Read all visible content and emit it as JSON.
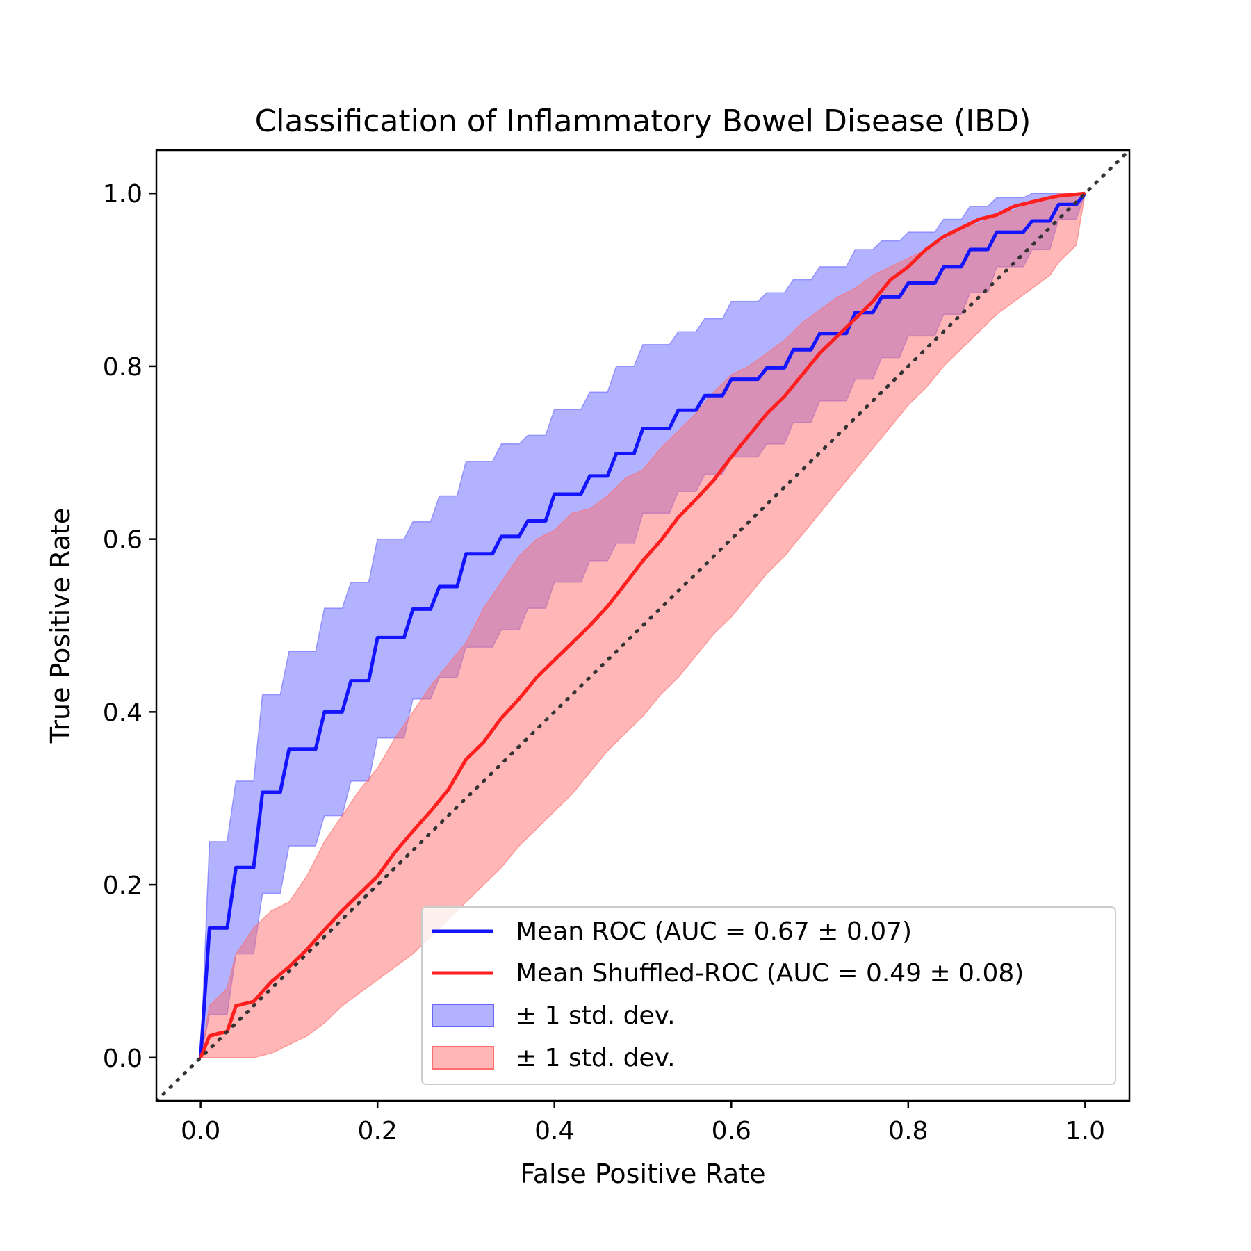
{
  "chart_data": {
    "type": "line",
    "title": "Classification of Inflammatory Bowel Disease (IBD)",
    "xlabel": "False Positive Rate",
    "ylabel": "True Positive Rate",
    "xlim": [
      -0.05,
      1.05
    ],
    "ylim": [
      -0.05,
      1.05
    ],
    "xticks": [
      "0.0",
      "0.2",
      "0.4",
      "0.6",
      "0.8",
      "1.0"
    ],
    "yticks": [
      "0.0",
      "0.2",
      "0.4",
      "0.6",
      "0.8",
      "1.0"
    ],
    "grid": false,
    "legend_position": "lower-right",
    "legend": [
      "Mean ROC (AUC = 0.67 ± 0.07)",
      "Mean Shuffled-ROC (AUC = 0.49 ± 0.08)",
      "± 1 std. dev.",
      "± 1 std. dev."
    ],
    "colors": {
      "roc": "#1414ff",
      "shuffled": "#ff1f1f",
      "roc_band": "#6666ff",
      "shuffled_band": "#ff6e6e",
      "diagonal": "#333333"
    },
    "series": [
      {
        "name": "Mean ROC (AUC = 0.67 ± 0.07)",
        "x": [
          0.0,
          0.01,
          0.01,
          0.03,
          0.04,
          0.06,
          0.07,
          0.09,
          0.1,
          0.13,
          0.14,
          0.16,
          0.17,
          0.19,
          0.2,
          0.23,
          0.24,
          0.26,
          0.27,
          0.29,
          0.3,
          0.33,
          0.34,
          0.36,
          0.37,
          0.39,
          0.4,
          0.43,
          0.44,
          0.46,
          0.47,
          0.49,
          0.5,
          0.53,
          0.54,
          0.56,
          0.57,
          0.59,
          0.6,
          0.63,
          0.64,
          0.66,
          0.67,
          0.69,
          0.7,
          0.73,
          0.74,
          0.76,
          0.77,
          0.79,
          0.8,
          0.83,
          0.84,
          0.86,
          0.87,
          0.89,
          0.9,
          0.93,
          0.94,
          0.96,
          0.97,
          0.99,
          1.0
        ],
        "y": [
          0.0,
          0.15,
          0.15,
          0.15,
          0.22,
          0.22,
          0.307,
          0.307,
          0.357,
          0.357,
          0.4,
          0.4,
          0.436,
          0.436,
          0.486,
          0.486,
          0.519,
          0.519,
          0.545,
          0.545,
          0.583,
          0.583,
          0.603,
          0.603,
          0.621,
          0.621,
          0.652,
          0.652,
          0.673,
          0.673,
          0.699,
          0.699,
          0.728,
          0.728,
          0.749,
          0.749,
          0.766,
          0.766,
          0.785,
          0.785,
          0.798,
          0.798,
          0.819,
          0.819,
          0.838,
          0.838,
          0.862,
          0.862,
          0.88,
          0.88,
          0.896,
          0.896,
          0.915,
          0.915,
          0.935,
          0.935,
          0.955,
          0.955,
          0.968,
          0.968,
          0.987,
          0.987,
          1.0
        ]
      },
      {
        "name": "Mean Shuffled-ROC (AUC = 0.49 ± 0.08)",
        "x": [
          0.0,
          0.01,
          0.02,
          0.03,
          0.04,
          0.06,
          0.08,
          0.1,
          0.12,
          0.14,
          0.16,
          0.18,
          0.2,
          0.22,
          0.24,
          0.26,
          0.28,
          0.3,
          0.32,
          0.34,
          0.36,
          0.38,
          0.4,
          0.42,
          0.44,
          0.46,
          0.48,
          0.5,
          0.52,
          0.54,
          0.56,
          0.58,
          0.6,
          0.62,
          0.64,
          0.66,
          0.68,
          0.7,
          0.72,
          0.74,
          0.76,
          0.78,
          0.8,
          0.82,
          0.84,
          0.86,
          0.88,
          0.9,
          0.92,
          0.94,
          0.96,
          0.97,
          0.98,
          0.99,
          1.0
        ],
        "y": [
          0.0,
          0.025,
          0.028,
          0.03,
          0.06,
          0.065,
          0.088,
          0.105,
          0.125,
          0.148,
          0.17,
          0.19,
          0.21,
          0.238,
          0.262,
          0.285,
          0.31,
          0.345,
          0.365,
          0.393,
          0.415,
          0.44,
          0.46,
          0.48,
          0.5,
          0.522,
          0.548,
          0.575,
          0.598,
          0.625,
          0.646,
          0.668,
          0.695,
          0.72,
          0.745,
          0.765,
          0.79,
          0.815,
          0.835,
          0.855,
          0.875,
          0.9,
          0.915,
          0.935,
          0.95,
          0.96,
          0.97,
          0.975,
          0.985,
          0.99,
          0.995,
          0.997,
          0.998,
          0.999,
          1.0
        ]
      }
    ],
    "bands": [
      {
        "name": "± 1 std. dev.",
        "x": [
          0.0,
          0.01,
          0.01,
          0.03,
          0.04,
          0.06,
          0.07,
          0.09,
          0.1,
          0.13,
          0.14,
          0.16,
          0.17,
          0.19,
          0.2,
          0.23,
          0.24,
          0.26,
          0.27,
          0.29,
          0.3,
          0.33,
          0.34,
          0.36,
          0.37,
          0.39,
          0.4,
          0.43,
          0.44,
          0.46,
          0.47,
          0.49,
          0.5,
          0.53,
          0.54,
          0.56,
          0.57,
          0.59,
          0.6,
          0.63,
          0.64,
          0.66,
          0.67,
          0.69,
          0.7,
          0.73,
          0.74,
          0.76,
          0.77,
          0.79,
          0.8,
          0.83,
          0.84,
          0.86,
          0.87,
          0.89,
          0.9,
          0.93,
          0.94,
          0.96,
          0.97,
          0.99,
          1.0
        ],
        "upper": [
          0.0,
          0.25,
          0.25,
          0.25,
          0.32,
          0.32,
          0.42,
          0.42,
          0.47,
          0.47,
          0.52,
          0.52,
          0.55,
          0.55,
          0.6,
          0.6,
          0.62,
          0.62,
          0.65,
          0.65,
          0.69,
          0.69,
          0.71,
          0.71,
          0.72,
          0.72,
          0.75,
          0.75,
          0.77,
          0.77,
          0.8,
          0.8,
          0.825,
          0.825,
          0.84,
          0.84,
          0.855,
          0.855,
          0.875,
          0.875,
          0.885,
          0.885,
          0.9,
          0.9,
          0.915,
          0.915,
          0.935,
          0.935,
          0.945,
          0.945,
          0.955,
          0.955,
          0.97,
          0.97,
          0.985,
          0.985,
          0.995,
          0.995,
          1.0,
          1.0,
          1.0,
          1.0,
          1.0
        ],
        "lower": [
          0.0,
          0.05,
          0.05,
          0.05,
          0.12,
          0.12,
          0.19,
          0.19,
          0.245,
          0.245,
          0.28,
          0.28,
          0.32,
          0.32,
          0.37,
          0.37,
          0.415,
          0.415,
          0.44,
          0.44,
          0.475,
          0.475,
          0.495,
          0.495,
          0.52,
          0.52,
          0.55,
          0.55,
          0.575,
          0.575,
          0.595,
          0.595,
          0.63,
          0.63,
          0.655,
          0.655,
          0.675,
          0.675,
          0.695,
          0.695,
          0.71,
          0.71,
          0.735,
          0.735,
          0.76,
          0.76,
          0.785,
          0.785,
          0.81,
          0.81,
          0.835,
          0.835,
          0.86,
          0.86,
          0.885,
          0.885,
          0.915,
          0.915,
          0.935,
          0.935,
          0.97,
          0.97,
          1.0
        ]
      },
      {
        "name": "± 1 std. dev.",
        "x": [
          0.0,
          0.01,
          0.02,
          0.03,
          0.04,
          0.06,
          0.08,
          0.1,
          0.12,
          0.14,
          0.16,
          0.18,
          0.2,
          0.22,
          0.24,
          0.26,
          0.28,
          0.3,
          0.32,
          0.34,
          0.36,
          0.38,
          0.4,
          0.42,
          0.44,
          0.46,
          0.48,
          0.5,
          0.52,
          0.54,
          0.56,
          0.58,
          0.6,
          0.62,
          0.64,
          0.66,
          0.68,
          0.7,
          0.72,
          0.74,
          0.76,
          0.78,
          0.8,
          0.82,
          0.84,
          0.86,
          0.88,
          0.9,
          0.92,
          0.94,
          0.96,
          0.97,
          0.98,
          0.99,
          1.0
        ],
        "upper": [
          0.0,
          0.06,
          0.07,
          0.08,
          0.12,
          0.15,
          0.17,
          0.18,
          0.21,
          0.25,
          0.28,
          0.31,
          0.335,
          0.37,
          0.4,
          0.43,
          0.455,
          0.48,
          0.52,
          0.55,
          0.58,
          0.6,
          0.61,
          0.63,
          0.635,
          0.65,
          0.67,
          0.68,
          0.705,
          0.725,
          0.745,
          0.77,
          0.79,
          0.8,
          0.815,
          0.83,
          0.85,
          0.865,
          0.88,
          0.89,
          0.905,
          0.915,
          0.925,
          0.935,
          0.945,
          0.96,
          0.965,
          0.975,
          0.98,
          0.99,
          0.995,
          1.0,
          1.0,
          1.0,
          1.0
        ],
        "lower": [
          0.0,
          0.0,
          0.0,
          0.0,
          0.0,
          0.0,
          0.005,
          0.015,
          0.025,
          0.04,
          0.06,
          0.075,
          0.09,
          0.105,
          0.12,
          0.14,
          0.16,
          0.18,
          0.2,
          0.22,
          0.245,
          0.265,
          0.285,
          0.305,
          0.33,
          0.355,
          0.375,
          0.395,
          0.42,
          0.44,
          0.465,
          0.49,
          0.51,
          0.535,
          0.56,
          0.58,
          0.605,
          0.63,
          0.655,
          0.68,
          0.705,
          0.73,
          0.755,
          0.775,
          0.8,
          0.82,
          0.84,
          0.86,
          0.875,
          0.89,
          0.905,
          0.92,
          0.93,
          0.94,
          1.0
        ]
      }
    ]
  }
}
